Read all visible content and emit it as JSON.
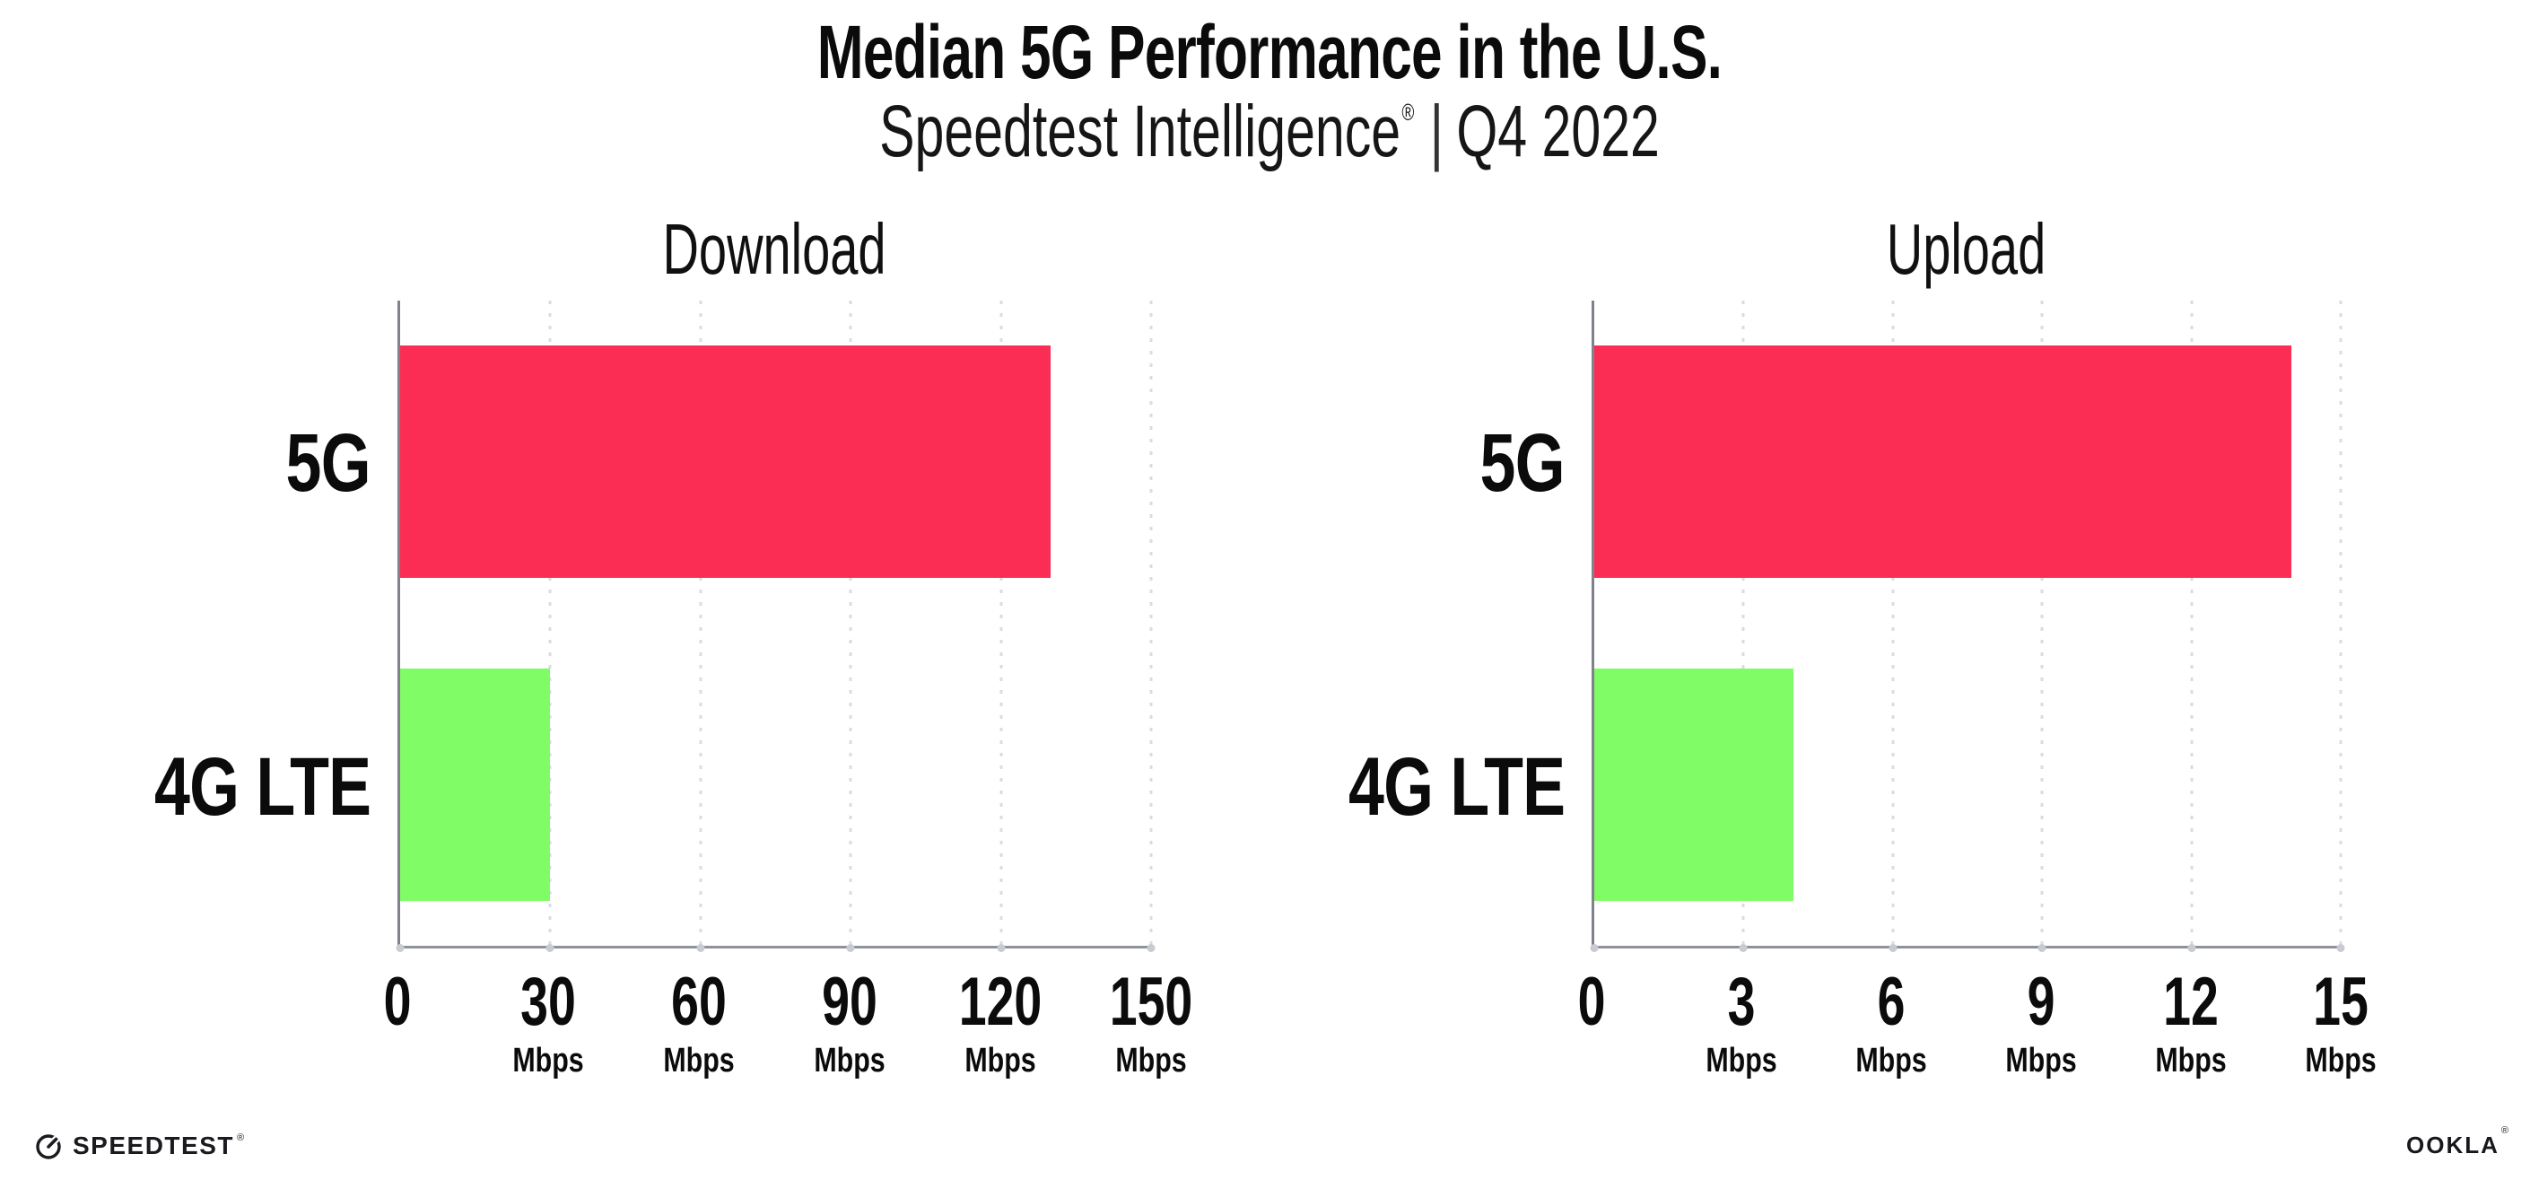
{
  "header": {
    "title": "Median 5G Performance in the U.S.",
    "subtitle": {
      "brand": "Speedtest Intelligence",
      "registered_mark": "®",
      "separator": "|",
      "period": "Q4 2022"
    }
  },
  "chart_data": [
    {
      "type": "bar",
      "orientation": "horizontal",
      "title": "Download",
      "categories": [
        "5G",
        "4G LTE"
      ],
      "values": [
        130,
        30
      ],
      "unit": "Mbps",
      "xlim": [
        0,
        150
      ],
      "xticks": [
        0,
        30,
        60,
        90,
        120,
        150
      ],
      "xtick_unit": "Mbps",
      "bar_colors": [
        "#FC2D55",
        "#80FC66"
      ],
      "grid": "vertical-dotted",
      "legend": "none"
    },
    {
      "type": "bar",
      "orientation": "horizontal",
      "title": "Upload",
      "categories": [
        "5G",
        "4G LTE"
      ],
      "values": [
        14,
        4
      ],
      "unit": "Mbps",
      "xlim": [
        0,
        15
      ],
      "xticks": [
        0,
        3,
        6,
        9,
        12,
        15
      ],
      "xtick_unit": "Mbps",
      "bar_colors": [
        "#FC2D55",
        "#80FC66"
      ],
      "grid": "vertical-dotted",
      "legend": "none"
    }
  ],
  "footer": {
    "speedtest_wordmark": "SPEEDTEST",
    "speedtest_registered_mark": "®",
    "speedtest_icon": "speedtest-gauge-icon",
    "ookla_wordmark": "OOKLA",
    "ookla_registered_mark": "®"
  },
  "colors": {
    "bar_5g": "#FC2D55",
    "bar_4g_lte": "#80FC66",
    "axis": "#85878D",
    "gridline": "#D9DBE5",
    "background": "#FFFFFF",
    "text": "#0B0B0B"
  }
}
